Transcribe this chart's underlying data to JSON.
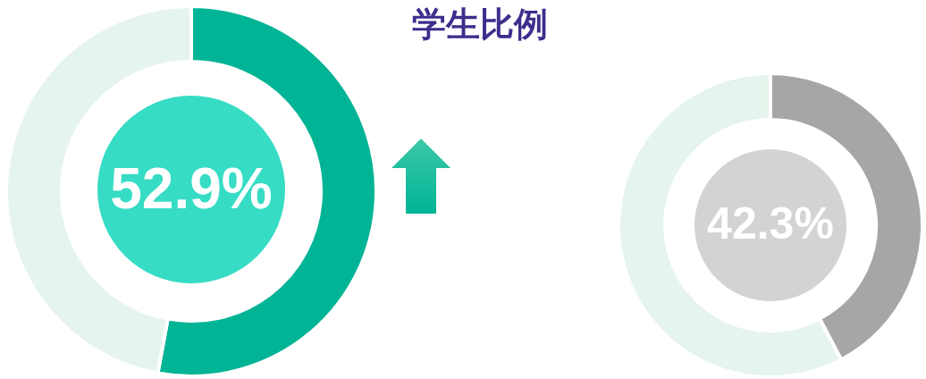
{
  "chart_data": [
    {
      "type": "donut",
      "title": "学生比例",
      "categories": [
        null,
        null
      ],
      "values": [
        52.9,
        47.1
      ],
      "colors": [
        "#00b495",
        "#e5f4ec"
      ],
      "value_labels": [
        "52.9%",
        null
      ]
    },
    {
      "type": "donut",
      "categories": [
        null,
        null
      ],
      "values": [
        42.3,
        57.7
      ],
      "colors": [
        "#a6a6a6",
        "#e5f4ec"
      ],
      "value_labels": [
        "42.3%",
        null
      ]
    }
  ]
}
